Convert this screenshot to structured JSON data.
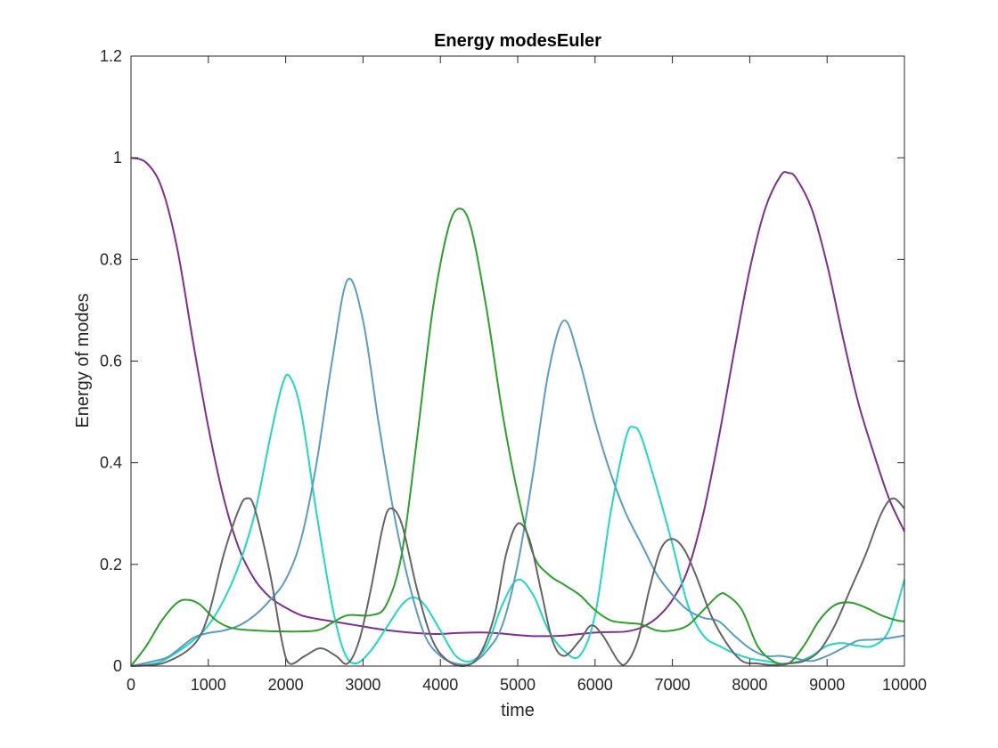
{
  "chart_data": {
    "type": "line",
    "title": "Energy modesEuler",
    "xlabel": "time",
    "ylabel": "Energy of modes",
    "xlim": [
      0,
      10000
    ],
    "ylim": [
      0,
      1.2
    ],
    "xticks": [
      "0",
      "1000",
      "2000",
      "3000",
      "4000",
      "5000",
      "6000",
      "7000",
      "8000",
      "9000",
      "10000"
    ],
    "yticks": [
      "0",
      "0.2",
      "0.4",
      "0.6",
      "0.8",
      "1",
      "1.2"
    ],
    "grid": false,
    "legend": "none",
    "series": [
      {
        "color": "#7e2f8e",
        "points": [
          [
            0,
            1.0
          ],
          [
            200,
            0.99
          ],
          [
            400,
            0.94
          ],
          [
            600,
            0.82
          ],
          [
            800,
            0.64
          ],
          [
            1000,
            0.47
          ],
          [
            1200,
            0.33
          ],
          [
            1400,
            0.23
          ],
          [
            1600,
            0.17
          ],
          [
            1800,
            0.135
          ],
          [
            2000,
            0.115
          ],
          [
            2200,
            0.1
          ],
          [
            2400,
            0.093
          ],
          [
            2600,
            0.088
          ],
          [
            2800,
            0.083
          ],
          [
            3000,
            0.078
          ],
          [
            3200,
            0.073
          ],
          [
            3400,
            0.069
          ],
          [
            3600,
            0.066
          ],
          [
            3800,
            0.064
          ],
          [
            4000,
            0.063
          ],
          [
            4200,
            0.065
          ],
          [
            4400,
            0.066
          ],
          [
            4600,
            0.066
          ],
          [
            4800,
            0.064
          ],
          [
            5000,
            0.061
          ],
          [
            5200,
            0.059
          ],
          [
            5400,
            0.059
          ],
          [
            5600,
            0.06
          ],
          [
            5800,
            0.063
          ],
          [
            6000,
            0.066
          ],
          [
            6200,
            0.067
          ],
          [
            6400,
            0.068
          ],
          [
            6600,
            0.076
          ],
          [
            6800,
            0.095
          ],
          [
            7000,
            0.13
          ],
          [
            7200,
            0.19
          ],
          [
            7400,
            0.3
          ],
          [
            7600,
            0.45
          ],
          [
            7800,
            0.62
          ],
          [
            8000,
            0.78
          ],
          [
            8200,
            0.9
          ],
          [
            8400,
            0.965
          ],
          [
            8500,
            0.97
          ],
          [
            8600,
            0.96
          ],
          [
            8800,
            0.9
          ],
          [
            9000,
            0.79
          ],
          [
            9200,
            0.65
          ],
          [
            9400,
            0.52
          ],
          [
            9600,
            0.42
          ],
          [
            9800,
            0.33
          ],
          [
            10000,
            0.265
          ]
        ]
      },
      {
        "color": "#1fd8c0",
        "points": [
          [
            0,
            0.0
          ],
          [
            300,
            0.005
          ],
          [
            500,
            0.018
          ],
          [
            800,
            0.05
          ],
          [
            1000,
            0.08
          ],
          [
            1200,
            0.13
          ],
          [
            1400,
            0.2
          ],
          [
            1600,
            0.3
          ],
          [
            1800,
            0.45
          ],
          [
            1950,
            0.55
          ],
          [
            2050,
            0.57
          ],
          [
            2200,
            0.5
          ],
          [
            2400,
            0.3
          ],
          [
            2600,
            0.12
          ],
          [
            2750,
            0.03
          ],
          [
            2900,
            0.005
          ],
          [
            3100,
            0.03
          ],
          [
            3300,
            0.075
          ],
          [
            3500,
            0.12
          ],
          [
            3650,
            0.135
          ],
          [
            3800,
            0.12
          ],
          [
            4000,
            0.07
          ],
          [
            4200,
            0.02
          ],
          [
            4400,
            0.01
          ],
          [
            4600,
            0.04
          ],
          [
            4800,
            0.12
          ],
          [
            5000,
            0.17
          ],
          [
            5200,
            0.14
          ],
          [
            5400,
            0.07
          ],
          [
            5600,
            0.03
          ],
          [
            5800,
            0.02
          ],
          [
            6000,
            0.1
          ],
          [
            6200,
            0.3
          ],
          [
            6400,
            0.45
          ],
          [
            6500,
            0.47
          ],
          [
            6600,
            0.45
          ],
          [
            6800,
            0.35
          ],
          [
            7000,
            0.24
          ],
          [
            7200,
            0.12
          ],
          [
            7400,
            0.06
          ],
          [
            7600,
            0.04
          ],
          [
            7800,
            0.025
          ],
          [
            8000,
            0.015
          ],
          [
            8200,
            0.01
          ],
          [
            8400,
            0.005
          ],
          [
            8600,
            0.008
          ],
          [
            8800,
            0.02
          ],
          [
            9000,
            0.04
          ],
          [
            9200,
            0.045
          ],
          [
            9400,
            0.04
          ],
          [
            9600,
            0.04
          ],
          [
            9800,
            0.07
          ],
          [
            10000,
            0.17
          ]
        ]
      },
      {
        "color": "#5b9bc4",
        "points": [
          [
            0,
            0.0
          ],
          [
            300,
            0.01
          ],
          [
            500,
            0.02
          ],
          [
            800,
            0.055
          ],
          [
            1000,
            0.065
          ],
          [
            1200,
            0.07
          ],
          [
            1400,
            0.08
          ],
          [
            1600,
            0.1
          ],
          [
            1800,
            0.13
          ],
          [
            2000,
            0.17
          ],
          [
            2200,
            0.25
          ],
          [
            2400,
            0.4
          ],
          [
            2600,
            0.6
          ],
          [
            2800,
            0.76
          ],
          [
            3000,
            0.68
          ],
          [
            3200,
            0.48
          ],
          [
            3400,
            0.3
          ],
          [
            3600,
            0.16
          ],
          [
            3800,
            0.06
          ],
          [
            4000,
            0.02
          ],
          [
            4200,
            0.005
          ],
          [
            4400,
            0.005
          ],
          [
            4600,
            0.03
          ],
          [
            4800,
            0.08
          ],
          [
            5000,
            0.2
          ],
          [
            5200,
            0.38
          ],
          [
            5400,
            0.58
          ],
          [
            5600,
            0.68
          ],
          [
            5800,
            0.6
          ],
          [
            6000,
            0.48
          ],
          [
            6200,
            0.38
          ],
          [
            6400,
            0.3
          ],
          [
            6600,
            0.24
          ],
          [
            6800,
            0.18
          ],
          [
            7000,
            0.14
          ],
          [
            7200,
            0.11
          ],
          [
            7400,
            0.095
          ],
          [
            7600,
            0.088
          ],
          [
            7800,
            0.06
          ],
          [
            8000,
            0.035
          ],
          [
            8200,
            0.02
          ],
          [
            8400,
            0.02
          ],
          [
            8600,
            0.015
          ],
          [
            8800,
            0.01
          ],
          [
            9000,
            0.02
          ],
          [
            9200,
            0.035
          ],
          [
            9400,
            0.05
          ],
          [
            9600,
            0.052
          ],
          [
            9800,
            0.055
          ],
          [
            10000,
            0.06
          ]
        ]
      },
      {
        "color": "#2ca02c",
        "points": [
          [
            0,
            0.0
          ],
          [
            200,
            0.04
          ],
          [
            400,
            0.09
          ],
          [
            600,
            0.125
          ],
          [
            750,
            0.13
          ],
          [
            900,
            0.12
          ],
          [
            1100,
            0.09
          ],
          [
            1300,
            0.075
          ],
          [
            1600,
            0.07
          ],
          [
            2000,
            0.068
          ],
          [
            2400,
            0.07
          ],
          [
            2600,
            0.085
          ],
          [
            2800,
            0.1
          ],
          [
            3100,
            0.1
          ],
          [
            3300,
            0.12
          ],
          [
            3500,
            0.22
          ],
          [
            3700,
            0.45
          ],
          [
            3900,
            0.7
          ],
          [
            4100,
            0.86
          ],
          [
            4250,
            0.9
          ],
          [
            4400,
            0.86
          ],
          [
            4600,
            0.7
          ],
          [
            4800,
            0.5
          ],
          [
            5000,
            0.34
          ],
          [
            5200,
            0.22
          ],
          [
            5400,
            0.18
          ],
          [
            5600,
            0.16
          ],
          [
            5800,
            0.14
          ],
          [
            6000,
            0.11
          ],
          [
            6200,
            0.09
          ],
          [
            6400,
            0.085
          ],
          [
            6600,
            0.082
          ],
          [
            6800,
            0.07
          ],
          [
            7000,
            0.07
          ],
          [
            7200,
            0.08
          ],
          [
            7400,
            0.11
          ],
          [
            7600,
            0.14
          ],
          [
            7700,
            0.14
          ],
          [
            7900,
            0.11
          ],
          [
            8100,
            0.04
          ],
          [
            8300,
            0.01
          ],
          [
            8500,
            0.005
          ],
          [
            8700,
            0.04
          ],
          [
            8900,
            0.09
          ],
          [
            9100,
            0.12
          ],
          [
            9300,
            0.125
          ],
          [
            9500,
            0.115
          ],
          [
            9700,
            0.1
          ],
          [
            9900,
            0.09
          ],
          [
            10000,
            0.088
          ]
        ]
      },
      {
        "color": "#656565",
        "points": [
          [
            0,
            0.0
          ],
          [
            400,
            0.005
          ],
          [
            800,
            0.04
          ],
          [
            1000,
            0.1
          ],
          [
            1200,
            0.22
          ],
          [
            1400,
            0.31
          ],
          [
            1500,
            0.33
          ],
          [
            1600,
            0.31
          ],
          [
            1800,
            0.18
          ],
          [
            1950,
            0.05
          ],
          [
            2050,
            0.005
          ],
          [
            2250,
            0.02
          ],
          [
            2450,
            0.035
          ],
          [
            2650,
            0.02
          ],
          [
            2800,
            0.005
          ],
          [
            2950,
            0.05
          ],
          [
            3100,
            0.15
          ],
          [
            3250,
            0.27
          ],
          [
            3350,
            0.31
          ],
          [
            3500,
            0.28
          ],
          [
            3700,
            0.15
          ],
          [
            3900,
            0.05
          ],
          [
            4100,
            0.01
          ],
          [
            4300,
            0.0
          ],
          [
            4500,
            0.02
          ],
          [
            4700,
            0.1
          ],
          [
            4850,
            0.22
          ],
          [
            5000,
            0.28
          ],
          [
            5150,
            0.25
          ],
          [
            5300,
            0.15
          ],
          [
            5450,
            0.05
          ],
          [
            5600,
            0.02
          ],
          [
            5800,
            0.05
          ],
          [
            5950,
            0.08
          ],
          [
            6100,
            0.06
          ],
          [
            6300,
            0.01
          ],
          [
            6400,
            0.005
          ],
          [
            6550,
            0.05
          ],
          [
            6700,
            0.15
          ],
          [
            6850,
            0.23
          ],
          [
            7000,
            0.25
          ],
          [
            7150,
            0.23
          ],
          [
            7300,
            0.18
          ],
          [
            7500,
            0.1
          ],
          [
            7700,
            0.045
          ],
          [
            7900,
            0.01
          ],
          [
            8100,
            0.005
          ],
          [
            8300,
            0.002
          ],
          [
            8500,
            0.005
          ],
          [
            8700,
            0.01
          ],
          [
            8900,
            0.03
          ],
          [
            9100,
            0.08
          ],
          [
            9300,
            0.15
          ],
          [
            9500,
            0.22
          ],
          [
            9700,
            0.3
          ],
          [
            9850,
            0.33
          ],
          [
            10000,
            0.31
          ]
        ]
      }
    ]
  }
}
